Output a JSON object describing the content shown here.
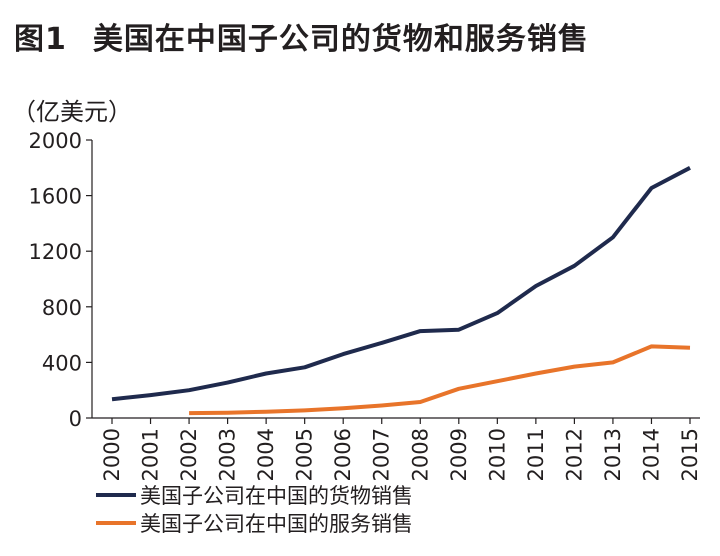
{
  "header": {
    "figure_label": "图1",
    "title": "美国在中国子公司的货物和服务销售"
  },
  "chart_data": {
    "type": "line",
    "title": "美国在中国子公司的货物和服务销售",
    "unit_label": "（亿美元）",
    "x": [
      "2000",
      "2001",
      "2002",
      "2003",
      "2004",
      "2005",
      "2006",
      "2007",
      "2008",
      "2009",
      "2010",
      "2011",
      "2012",
      "2013",
      "2014",
      "2015"
    ],
    "ylim": [
      0,
      2000
    ],
    "yticks": [
      0,
      400,
      800,
      1200,
      1600,
      2000
    ],
    "ytick_labels": [
      "0",
      "400",
      "800",
      "1200",
      "1600",
      "2000"
    ],
    "grid": false,
    "legend_position": "bottom-left",
    "series": [
      {
        "name": "美国子公司在中国的货物销售",
        "color": "#1f2a4d",
        "values": [
          135,
          165,
          200,
          255,
          320,
          365,
          460,
          540,
          625,
          635,
          755,
          950,
          1095,
          1300,
          1655,
          1800
        ]
      },
      {
        "name": "美国子公司在中国的服务销售",
        "color": "#e8742a",
        "values": [
          null,
          null,
          35,
          38,
          45,
          55,
          70,
          90,
          115,
          210,
          265,
          320,
          370,
          400,
          515,
          505
        ]
      }
    ]
  }
}
